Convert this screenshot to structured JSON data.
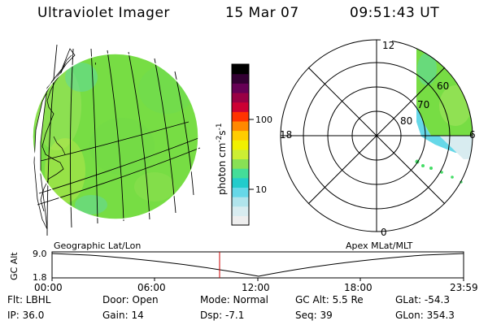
{
  "header": {
    "title": "Ultraviolet Imager",
    "date": "15 Mar 07",
    "time": "09:51:43 UT"
  },
  "colorbar": {
    "label_main": "photon cm",
    "label_sup1": "-2",
    "label_mid": "s",
    "label_sup2": "-1",
    "ticks": [
      "100",
      "10"
    ],
    "colors": [
      "#eeeeee",
      "#d8ecf0",
      "#b0e4ec",
      "#66d8e8",
      "#22cccc",
      "#44dd99",
      "#88e055",
      "#ccee33",
      "#f0f000",
      "#ffcc00",
      "#ff8800",
      "#ff3300",
      "#cc0033",
      "#990044",
      "#660055",
      "#330033",
      "#000000"
    ]
  },
  "left_panel": {
    "caption": "Geographic Lat/Lon",
    "fill_color": "#77dd44"
  },
  "polar_plot": {
    "caption": "Apex MLat/MLT",
    "mlt_labels": [
      "12",
      "18",
      "6",
      "0"
    ],
    "lat_labels": [
      "60",
      "70",
      "80"
    ]
  },
  "timeline": {
    "ylabel": "GC Alt",
    "y_top": "9.0",
    "y_bottom": "1.8",
    "ticks": [
      "00:00",
      "06:00",
      "12:00",
      "18:00",
      "23:59"
    ],
    "marker_color": "#cc0000"
  },
  "info": {
    "filter": "Flt: LBHL",
    "ip": "IP: 36.0",
    "door": "Door: Open",
    "gain": "Gain: 14",
    "mode": "Mode: Normal",
    "dsp": "Dsp:  -7.1",
    "gc_alt": "GC Alt: 5.5 Re",
    "seq": "Seq: 39",
    "glat": "GLat: -54.3",
    "glon": "GLon: 354.3"
  }
}
